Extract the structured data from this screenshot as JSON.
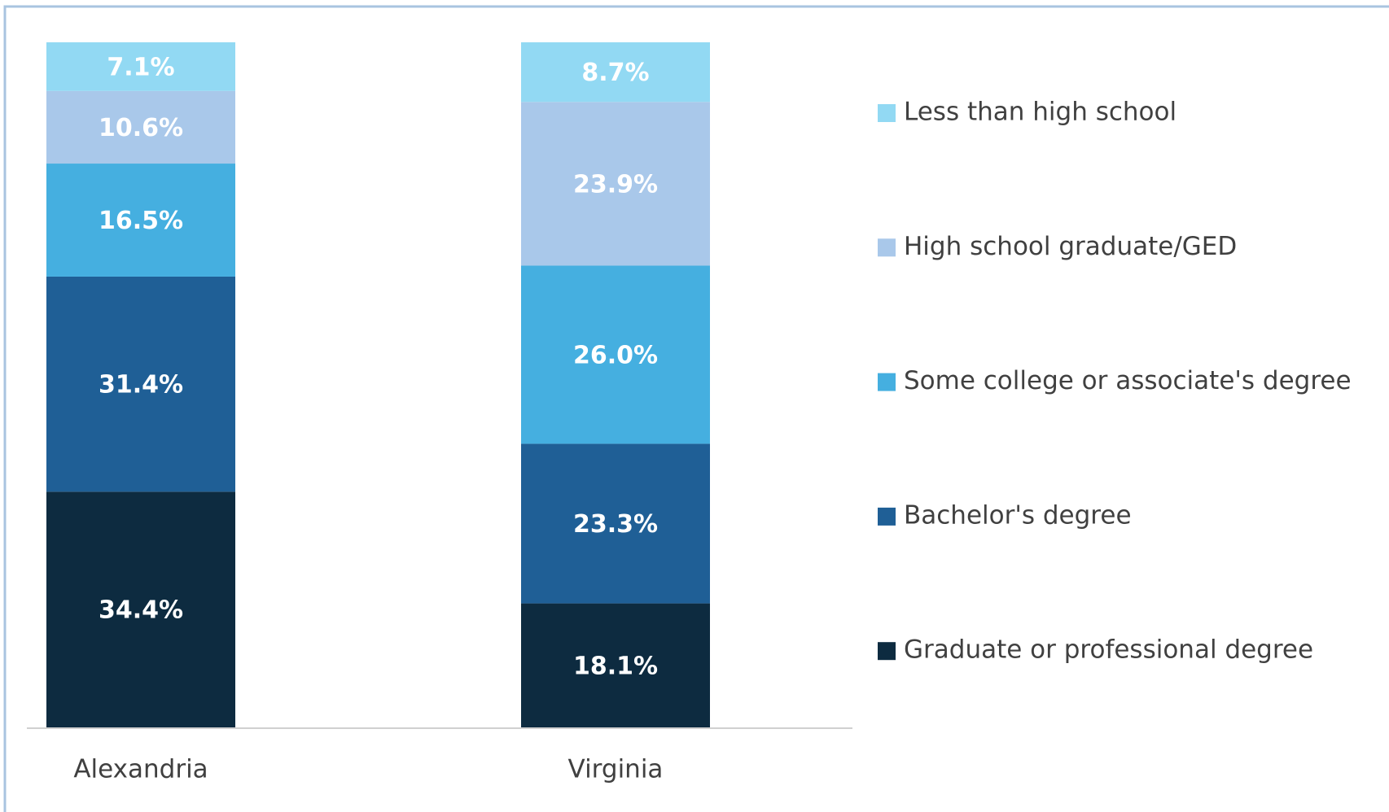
{
  "chart_data": {
    "type": "stacked_bar",
    "categories": [
      "Alexandria",
      "Virginia"
    ],
    "series": [
      {
        "name": "Graduate or professional degree",
        "color": "#0d2b40",
        "values": [
          34.4,
          18.1
        ],
        "value_labels": [
          "34.4%",
          "18.1%"
        ]
      },
      {
        "name": "Bachelor's degree",
        "color": "#1f5f96",
        "values": [
          31.4,
          23.3
        ],
        "value_labels": [
          "31.4%",
          "23.3%"
        ]
      },
      {
        "name": "Some college or associate's degree",
        "color": "#45afe0",
        "values": [
          16.5,
          26.0
        ],
        "value_labels": [
          "16.5%",
          "26.0%"
        ]
      },
      {
        "name": "High school graduate/GED",
        "color": "#a9c8ea",
        "values": [
          10.6,
          23.9
        ],
        "value_labels": [
          "10.6%",
          "23.9%"
        ]
      },
      {
        "name": "Less than high school",
        "color": "#92d9f3",
        "values": [
          7.1,
          8.7
        ],
        "value_labels": [
          "7.1%",
          "8.7%"
        ]
      }
    ],
    "legend": "right"
  }
}
